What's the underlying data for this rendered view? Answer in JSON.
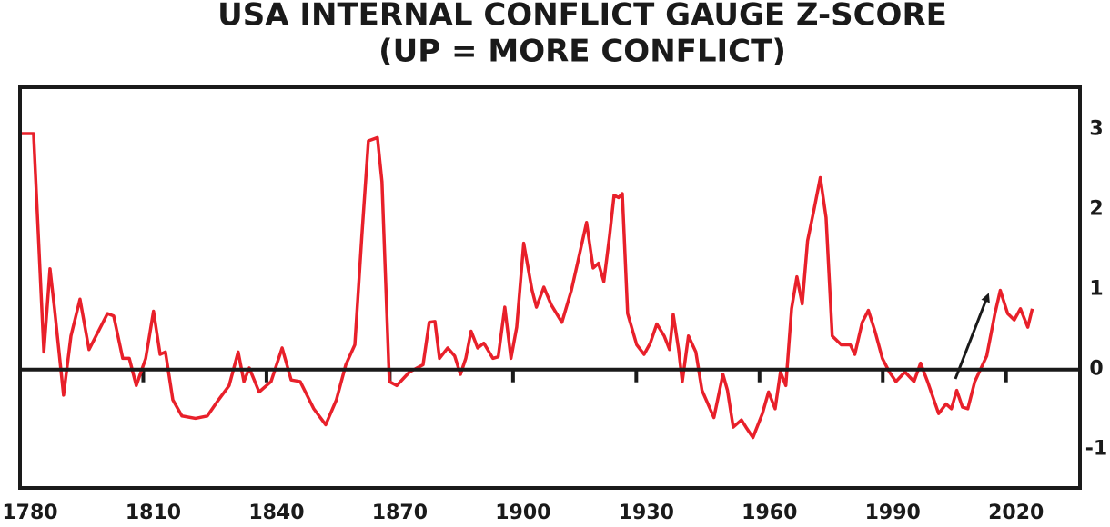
{
  "chart_data": {
    "type": "line",
    "title": "USA INTERNAL CONFLICT GAUGE Z-SCORE",
    "subtitle": "(UP = MORE CONFLICT)",
    "xlim": [
      1780,
      2038
    ],
    "xticks": [
      1780,
      1810,
      1840,
      1870,
      1900,
      1930,
      1960,
      1990,
      2020
    ],
    "ylim": [
      -1.48,
      3.53
    ],
    "yticks": [
      -1,
      0,
      1,
      2,
      3
    ],
    "grid": false,
    "series": [
      {
        "color": "#e8202a",
        "x": [
          1780.0,
          1783.3,
          1785.8,
          1787.3,
          1788.4,
          1790.6,
          1792.4,
          1794.6,
          1796.8,
          1801.3,
          1802.8,
          1805.0,
          1806.6,
          1808.3,
          1810.6,
          1812.5,
          1814.1,
          1815.4,
          1817.2,
          1819.4,
          1822.7,
          1825.6,
          1828.3,
          1830.9,
          1833.1,
          1834.5,
          1835.8,
          1838.2,
          1841.1,
          1843.8,
          1846.0,
          1848.2,
          1851.5,
          1854.4,
          1857.0,
          1859.3,
          1861.5,
          1863.2,
          1864.8,
          1867.0,
          1868.1,
          1869.9,
          1871.7,
          1874.8,
          1878.1,
          1879.6,
          1881.0,
          1882.1,
          1884.1,
          1885.8,
          1887.2,
          1888.5,
          1889.8,
          1891.4,
          1892.9,
          1895.1,
          1896.4,
          1898.0,
          1899.5,
          1900.9,
          1902.6,
          1904.6,
          1905.7,
          1907.5,
          1909.3,
          1911.9,
          1914.2,
          1915.7,
          1917.9,
          1919.5,
          1920.8,
          1922.1,
          1923.5,
          1924.6,
          1925.7,
          1926.6,
          1927.9,
          1930.1,
          1931.9,
          1933.4,
          1935.0,
          1936.8,
          1938.1,
          1939.0,
          1940.3,
          1941.2,
          1942.7,
          1944.5,
          1946.0,
          1948.9,
          1951.1,
          1952.2,
          1953.6,
          1955.6,
          1956.7,
          1958.4,
          1960.7,
          1962.2,
          1963.8,
          1965.1,
          1966.4,
          1967.8,
          1969.1,
          1970.4,
          1971.7,
          1973.3,
          1974.8,
          1976.2,
          1977.7,
          1979.9,
          1982.1,
          1983.2,
          1985.0,
          1986.5,
          1988.1,
          1989.9,
          1991.6,
          1993.2,
          1995.4,
          1997.6,
          1999.2,
          2000.9,
          2003.6,
          2005.4,
          2006.7,
          2008.0,
          2009.4,
          2010.7,
          2012.4,
          2015.3,
          2017.3,
          2018.6,
          2020.4,
          2022.0,
          2023.5,
          2025.3,
          2026.4
        ],
        "values": [
          2.95,
          2.95,
          0.22,
          1.26,
          0.76,
          -0.32,
          0.42,
          0.88,
          0.25,
          0.7,
          0.67,
          0.14,
          0.14,
          -0.2,
          0.14,
          0.73,
          0.19,
          0.22,
          -0.38,
          -0.58,
          -0.61,
          -0.58,
          -0.38,
          -0.2,
          0.22,
          -0.15,
          0.02,
          -0.28,
          -0.15,
          0.27,
          -0.13,
          -0.15,
          -0.49,
          -0.69,
          -0.38,
          0.06,
          0.31,
          1.67,
          2.86,
          2.9,
          2.35,
          -0.15,
          -0.2,
          -0.03,
          0.06,
          0.59,
          0.6,
          0.14,
          0.27,
          0.17,
          -0.06,
          0.14,
          0.48,
          0.27,
          0.33,
          0.14,
          0.16,
          0.78,
          0.14,
          0.53,
          1.58,
          1.0,
          0.78,
          1.03,
          0.81,
          0.59,
          0.99,
          1.33,
          1.84,
          1.27,
          1.33,
          1.1,
          1.67,
          2.18,
          2.15,
          2.2,
          0.7,
          0.31,
          0.19,
          0.33,
          0.57,
          0.42,
          0.25,
          0.69,
          0.25,
          -0.15,
          0.42,
          0.22,
          -0.26,
          -0.6,
          -0.06,
          -0.26,
          -0.72,
          -0.63,
          -0.72,
          -0.85,
          -0.55,
          -0.28,
          -0.49,
          -0.03,
          -0.2,
          0.76,
          1.16,
          0.82,
          1.61,
          2.01,
          2.4,
          1.9,
          0.42,
          0.31,
          0.31,
          0.19,
          0.59,
          0.74,
          0.48,
          0.14,
          -0.03,
          -0.15,
          -0.03,
          -0.15,
          0.08,
          -0.15,
          -0.55,
          -0.43,
          -0.49,
          -0.26,
          -0.47,
          -0.49,
          -0.15,
          0.17,
          0.7,
          0.99,
          0.7,
          0.62,
          0.76,
          0.53,
          0.76
        ]
      }
    ]
  }
}
